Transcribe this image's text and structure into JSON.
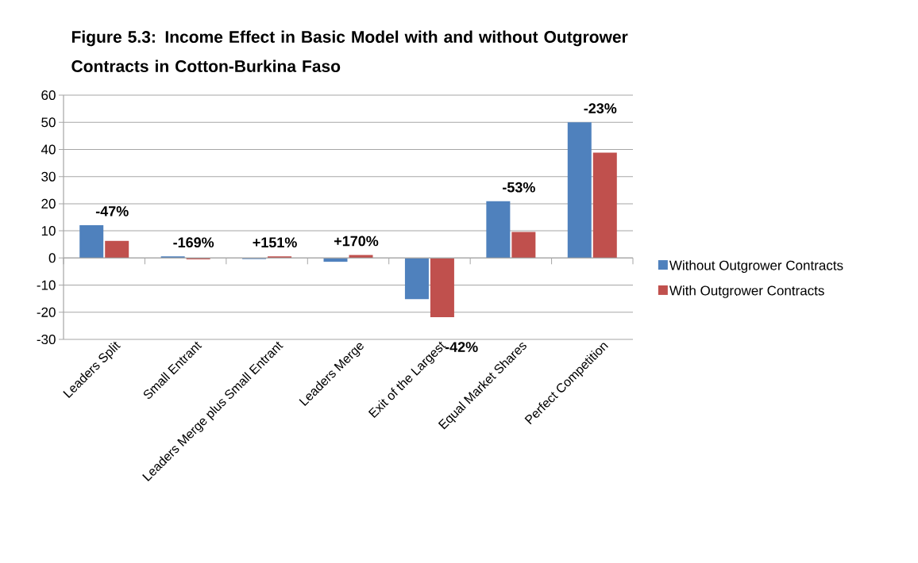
{
  "chart_data": {
    "type": "bar",
    "title": "Figure 5.3: Income Effect in Basic Model with and without Outgrower Contracts in Cotton-Burkina Faso",
    "categories": [
      "Leaders Split",
      "Small Entrant",
      "Leaders Merge plus Small Entrant",
      "Leaders Merge",
      "Exit of the Largest",
      "Equal Market Shares",
      "Perfect Competition"
    ],
    "series": [
      {
        "name": "Without Outgrower Contracts",
        "color": "#4f81bd",
        "values": [
          12.1,
          0.6,
          -0.4,
          -1.4,
          -15.2,
          20.9,
          50
        ]
      },
      {
        "name": "With Outgrower Contracts",
        "color": "#c0504d",
        "values": [
          6.3,
          -0.5,
          0.6,
          1.1,
          -21.8,
          9.6,
          38.8
        ]
      }
    ],
    "annotations": [
      "-47%",
      "-169%",
      "+151%",
      "+170%",
      "-42%",
      "-53%",
      "-23%"
    ],
    "ylim": [
      -30,
      60
    ],
    "yticks": [
      -30,
      -20,
      -10,
      0,
      10,
      20,
      30,
      40,
      50,
      60
    ],
    "grid": "y",
    "legend": "right"
  }
}
